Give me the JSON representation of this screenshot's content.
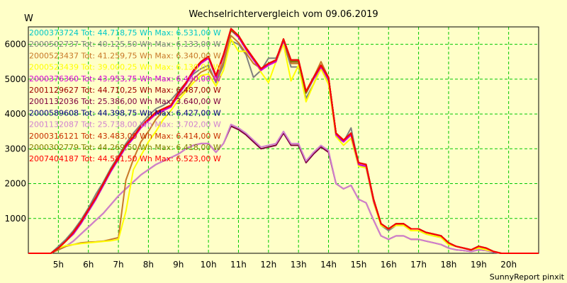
{
  "chart_data": {
    "type": "line",
    "title": "Wechselrichtervergleich vom 09.06.2019",
    "ylabel": "W",
    "xlabel": "",
    "footer": "SunnyReport pinxit",
    "xlim": [
      4,
      21
    ],
    "ylim": [
      0,
      6500
    ],
    "x_ticks": [
      5,
      6,
      7,
      8,
      9,
      10,
      11,
      12,
      13,
      14,
      15,
      16,
      17,
      18,
      19,
      20
    ],
    "x_tick_labels": [
      "5h",
      "6h",
      "7h",
      "8h",
      "9h",
      "10h",
      "11h",
      "12h",
      "13h",
      "14h",
      "15h",
      "16h",
      "17h",
      "18h",
      "19h",
      "20h"
    ],
    "y_ticks": [
      1000,
      2000,
      3000,
      4000,
      5000,
      6000
    ],
    "y_tick_labels": [
      "1000",
      "2000",
      "3000",
      "4000",
      "5000",
      "6000"
    ],
    "grid": true,
    "legend_position": "top-left",
    "x": [
      4.0,
      4.5,
      4.75,
      5.0,
      5.25,
      5.5,
      5.75,
      6.0,
      6.25,
      6.5,
      6.75,
      7.0,
      7.25,
      7.5,
      7.75,
      8.0,
      8.25,
      8.5,
      8.75,
      9.0,
      9.25,
      9.5,
      9.75,
      10.0,
      10.25,
      10.5,
      10.75,
      11.0,
      11.25,
      11.5,
      11.75,
      12.0,
      12.25,
      12.5,
      12.75,
      13.0,
      13.25,
      13.5,
      13.75,
      14.0,
      14.25,
      14.5,
      14.75,
      15.0,
      15.25,
      15.5,
      15.75,
      16.0,
      16.25,
      16.5,
      16.75,
      17.0,
      17.25,
      17.5,
      17.75,
      18.0,
      18.25,
      18.5,
      18.75,
      19.0,
      19.25,
      19.5,
      19.75,
      20.0,
      21.0
    ],
    "series": [
      {
        "name": "2000373724 Tot: 44.718,75 Wh Max: 6.531,00 W",
        "color": "#00c8c8",
        "group": "B",
        "values": [
          0,
          0,
          0,
          150,
          350,
          550,
          850,
          1200,
          1550,
          1950,
          2350,
          2700,
          3050,
          3300,
          3650,
          3850,
          4050,
          4150,
          4250,
          4600,
          4900,
          5250,
          5500,
          5650,
          5100,
          5700,
          6450,
          6250,
          5900,
          5600,
          5300,
          5450,
          5550,
          6150,
          5550,
          5550,
          4650,
          5050,
          5400,
          5050,
          3450,
          3250,
          3450,
          2600,
          2550,
          1550,
          850,
          700,
          850,
          850,
          700,
          700,
          600,
          550,
          500,
          300,
          200,
          150,
          100,
          200,
          150,
          50,
          0,
          0,
          0
        ]
      },
      {
        "name": "2000502737 Tot: 40.125,50 Wh Max: 6.133,00 W",
        "color": "#808080",
        "group": "B",
        "values": [
          0,
          0,
          0,
          200,
          400,
          650,
          950,
          1300,
          1700,
          2050,
          2450,
          2800,
          3150,
          3450,
          3700,
          3950,
          4150,
          4250,
          4400,
          4650,
          4900,
          5150,
          5300,
          5400,
          4900,
          5400,
          6100,
          6000,
          5700,
          5050,
          5250,
          5600,
          5600,
          6050,
          5350,
          5350,
          4450,
          4850,
          5350,
          4950,
          3350,
          3200,
          3600,
          2550,
          2450,
          1500,
          800,
          650,
          800,
          800,
          650,
          650,
          550,
          500,
          450,
          250,
          200,
          150,
          100,
          150,
          100,
          50,
          0,
          0,
          0
        ]
      },
      {
        "name": "2000523437 Tot: 41.259,75 Wh Max: 6.340,00 W",
        "color": "#c87828",
        "group": "B",
        "values": [
          0,
          0,
          0,
          100,
          200,
          250,
          300,
          320,
          330,
          350,
          400,
          450,
          2100,
          2700,
          3200,
          3500,
          3850,
          4100,
          4250,
          4500,
          4700,
          5000,
          5200,
          5300,
          4950,
          5500,
          6250,
          6050,
          5750,
          5450,
          5300,
          5450,
          5500,
          6050,
          5450,
          5450,
          4600,
          5050,
          5500,
          5050,
          3400,
          3200,
          3400,
          2550,
          2500,
          1500,
          850,
          700,
          850,
          850,
          700,
          700,
          600,
          550,
          500,
          300,
          200,
          150,
          100,
          200,
          150,
          50,
          0,
          0,
          0
        ]
      },
      {
        "name": "2000523439 Tot: 39.000,25 Wh Max: 6.130,00 W",
        "color": "#ffff00",
        "group": "B",
        "values": [
          0,
          0,
          0,
          150,
          220,
          250,
          280,
          300,
          320,
          340,
          360,
          400,
          1200,
          2400,
          2800,
          3200,
          3500,
          3850,
          4100,
          4400,
          4650,
          4900,
          5100,
          5150,
          4800,
          5250,
          6150,
          5800,
          5800,
          5600,
          5200,
          4900,
          5500,
          6000,
          4950,
          5400,
          4350,
          4850,
          5300,
          4850,
          3350,
          3100,
          3300,
          2500,
          2450,
          1450,
          800,
          700,
          800,
          800,
          650,
          650,
          550,
          500,
          450,
          250,
          200,
          150,
          100,
          150,
          100,
          50,
          0,
          0,
          0
        ]
      },
      {
        "name": "2000376360 Tot: 43.953,75 Wh Max: 6.490,00 W",
        "color": "#d400d4",
        "group": "B",
        "values": [
          0,
          0,
          0,
          150,
          350,
          550,
          850,
          1200,
          1550,
          1950,
          2350,
          2700,
          3050,
          3300,
          3600,
          3800,
          4000,
          4100,
          4200,
          4550,
          4850,
          5200,
          5450,
          5600,
          5050,
          5650,
          6400,
          6200,
          5850,
          5550,
          5250,
          5400,
          5500,
          6100,
          5500,
          5500,
          4600,
          5000,
          5350,
          5000,
          3400,
          3200,
          3400,
          2550,
          2500,
          1500,
          850,
          700,
          850,
          850,
          700,
          700,
          600,
          550,
          500,
          300,
          200,
          150,
          100,
          200,
          150,
          50,
          0,
          0,
          0
        ]
      },
      {
        "name": "2001129627 Tot: 44.710,25 Wh Max: 6.487,00 W",
        "color": "#a00000",
        "group": "B",
        "values": [
          0,
          0,
          0,
          150,
          350,
          600,
          900,
          1250,
          1600,
          2000,
          2400,
          2750,
          3100,
          3350,
          3650,
          3850,
          4050,
          4150,
          4250,
          4600,
          4900,
          5250,
          5500,
          5650,
          5100,
          5700,
          6450,
          6250,
          5900,
          5600,
          5300,
          5450,
          5550,
          6150,
          5550,
          5550,
          4650,
          5050,
          5400,
          5050,
          3450,
          3250,
          3450,
          2600,
          2550,
          1550,
          850,
          700,
          850,
          850,
          700,
          700,
          600,
          550,
          500,
          300,
          200,
          150,
          100,
          200,
          150,
          50,
          0,
          0,
          0
        ]
      },
      {
        "name": "2001132036 Tot: 25.386,00 Wh Max: 3.640,00 W",
        "color": "#800040",
        "group": "A",
        "values": [
          0,
          0,
          0,
          100,
          200,
          350,
          550,
          750,
          950,
          1150,
          1400,
          1650,
          1850,
          2050,
          2250,
          2400,
          2550,
          2650,
          2750,
          2850,
          3000,
          3100,
          3150,
          3150,
          2900,
          3150,
          3650,
          3550,
          3400,
          3200,
          3000,
          3050,
          3100,
          3450,
          3100,
          3100,
          2600,
          2850,
          3050,
          2900,
          2000,
          1850,
          1950,
          1550,
          1450,
          950,
          500,
          400,
          500,
          500,
          400,
          400,
          350,
          300,
          250,
          150,
          100,
          80,
          50,
          100,
          80,
          30,
          0,
          0,
          0
        ]
      },
      {
        "name": "2000589608 Tot: 44.398,75 Wh Max: 6.427,00 W",
        "color": "#000080",
        "group": "B",
        "values": [
          0,
          0,
          0,
          150,
          350,
          600,
          900,
          1250,
          1600,
          2000,
          2400,
          2750,
          3100,
          3350,
          3650,
          3850,
          4050,
          4150,
          4250,
          4600,
          4900,
          5250,
          5500,
          5650,
          5100,
          5700,
          6400,
          6250,
          5900,
          5600,
          5300,
          5450,
          5550,
          6150,
          5500,
          5500,
          4600,
          5050,
          5400,
          5050,
          3450,
          3250,
          3450,
          2600,
          2550,
          1550,
          850,
          700,
          850,
          850,
          700,
          700,
          600,
          550,
          500,
          300,
          200,
          150,
          100,
          200,
          150,
          50,
          0,
          0,
          0
        ]
      },
      {
        "name": "2001132087 Tot: 25.738,00 Wh Max: 3.702,00 W",
        "color": "#d080d0",
        "group": "A",
        "values": [
          0,
          0,
          0,
          100,
          200,
          350,
          550,
          750,
          950,
          1150,
          1400,
          1650,
          1850,
          2050,
          2250,
          2400,
          2550,
          2650,
          2750,
          2850,
          3000,
          3100,
          3150,
          3150,
          2900,
          3150,
          3700,
          3600,
          3450,
          3250,
          3050,
          3100,
          3150,
          3500,
          3150,
          3150,
          2650,
          2900,
          3100,
          2950,
          2000,
          1850,
          1950,
          1550,
          1450,
          950,
          500,
          400,
          500,
          500,
          400,
          400,
          350,
          300,
          250,
          150,
          100,
          80,
          50,
          100,
          80,
          30,
          0,
          0,
          0
        ]
      },
      {
        "name": "2000316121 Tot: 43.483,00 Wh Max: 6.414,00 W",
        "color": "#c83000",
        "group": "B",
        "values": [
          0,
          0,
          0,
          150,
          350,
          600,
          900,
          1250,
          1600,
          2000,
          2400,
          2750,
          3100,
          3350,
          3650,
          3850,
          4050,
          4150,
          4250,
          4600,
          4900,
          5250,
          5500,
          5650,
          5100,
          5700,
          6400,
          6250,
          5900,
          5600,
          5300,
          5450,
          5550,
          6150,
          5500,
          5500,
          4600,
          5050,
          5400,
          5050,
          3450,
          3250,
          3450,
          2600,
          2550,
          1550,
          850,
          700,
          850,
          850,
          700,
          700,
          600,
          550,
          500,
          300,
          200,
          150,
          100,
          200,
          150,
          50,
          0,
          0,
          0
        ]
      },
      {
        "name": "2000302779 Tot: 44.269,50 Wh Max: 6.418,00 W",
        "color": "#808000",
        "group": "B",
        "values": [
          0,
          0,
          0,
          150,
          350,
          600,
          900,
          1250,
          1600,
          2000,
          2400,
          2750,
          3100,
          3350,
          3650,
          3850,
          4050,
          4150,
          4250,
          4600,
          4900,
          5250,
          5500,
          5650,
          5100,
          5700,
          6400,
          6250,
          5900,
          5600,
          5300,
          5450,
          5550,
          6150,
          5500,
          5500,
          4600,
          5050,
          5400,
          5050,
          3450,
          3250,
          3450,
          2600,
          2550,
          1550,
          850,
          700,
          850,
          850,
          700,
          700,
          600,
          550,
          500,
          300,
          200,
          150,
          100,
          200,
          150,
          50,
          0,
          0,
          0
        ]
      },
      {
        "name": "2007404187 Tot: 44.581,50 Wh Max: 6.523,00 W",
        "color": "#ff0000",
        "group": "B",
        "values": [
          0,
          0,
          0,
          150,
          350,
          600,
          900,
          1250,
          1600,
          2000,
          2400,
          2750,
          3100,
          3350,
          3650,
          3850,
          4050,
          4150,
          4250,
          4600,
          4900,
          5250,
          5500,
          5650,
          5100,
          5700,
          6450,
          6250,
          5900,
          5600,
          5300,
          5450,
          5550,
          6150,
          5550,
          5550,
          4650,
          5050,
          5400,
          5050,
          3450,
          3250,
          3450,
          2600,
          2550,
          1550,
          850,
          700,
          850,
          850,
          700,
          700,
          600,
          550,
          500,
          300,
          200,
          150,
          100,
          200,
          150,
          50,
          0,
          0,
          0
        ]
      }
    ]
  }
}
